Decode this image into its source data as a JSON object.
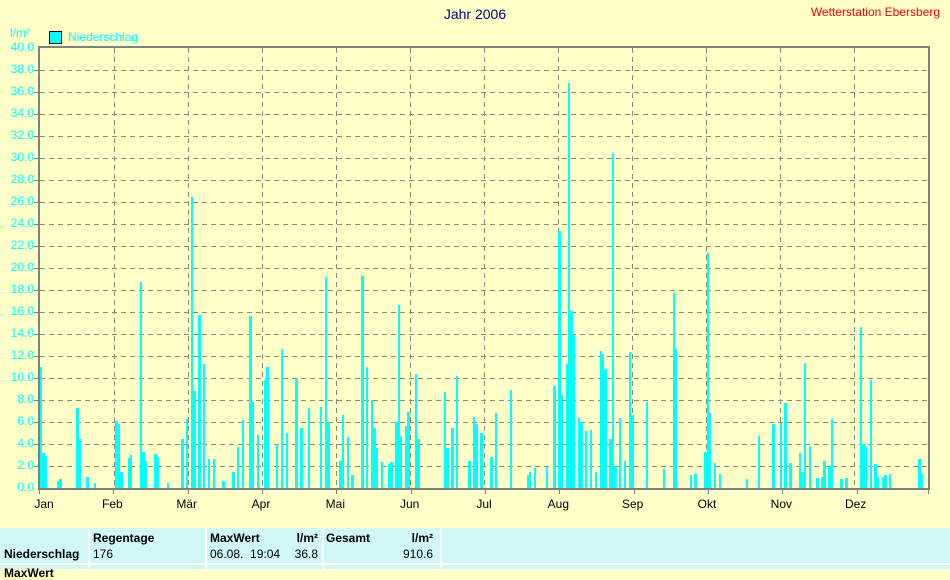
{
  "header": {
    "title": "Jahr 2006",
    "station": "Wetterstation Ebersberg"
  },
  "legend": {
    "label": "Niederschlag"
  },
  "y_axis": {
    "unit": "l/m²",
    "min": 0,
    "max": 40,
    "step": 2,
    "tick_format": "0.0"
  },
  "months": [
    "Jan",
    "Feb",
    "Mär",
    "Apr",
    "Mai",
    "Jun",
    "Jul",
    "Aug",
    "Sep",
    "Okt",
    "Nov",
    "Dez"
  ],
  "colors": {
    "background": "#FFFFC8",
    "bar": "#00FFFF",
    "axis_text": "#00FFFF",
    "title": "#000080",
    "station": "#FF0000",
    "grid": "#808080",
    "table_background": "#D0F7F3"
  },
  "chart_data": {
    "type": "bar",
    "title": "Jahr 2006",
    "ylabel": "l/m²",
    "series_name": "Niederschlag",
    "ylim": [
      0,
      40
    ],
    "grid": "dashed",
    "legend_position": "top-left",
    "x_unit": "day_of_year",
    "x_range": [
      1,
      365
    ],
    "points": [
      [
        1,
        11.0
      ],
      [
        2,
        3.2
      ],
      [
        3,
        2.9
      ],
      [
        8,
        0.6
      ],
      [
        9,
        0.8
      ],
      [
        16,
        7.3
      ],
      [
        17,
        4.5
      ],
      [
        20,
        1.0
      ],
      [
        23,
        0.5
      ],
      [
        32,
        6.1
      ],
      [
        33,
        5.8
      ],
      [
        34,
        1.5
      ],
      [
        37,
        2.7
      ],
      [
        38,
        3.0
      ],
      [
        42,
        18.7
      ],
      [
        43,
        3.3
      ],
      [
        44,
        2.5
      ],
      [
        48,
        3.1
      ],
      [
        49,
        2.8
      ],
      [
        53,
        0.5
      ],
      [
        59,
        4.5
      ],
      [
        61,
        6.3
      ],
      [
        63,
        26.5
      ],
      [
        64,
        8.8
      ],
      [
        66,
        15.7
      ],
      [
        68,
        11.3
      ],
      [
        70,
        2.6
      ],
      [
        72,
        2.6
      ],
      [
        76,
        0.6
      ],
      [
        80,
        1.5
      ],
      [
        82,
        3.7
      ],
      [
        84,
        6.2
      ],
      [
        87,
        15.6
      ],
      [
        88,
        7.8
      ],
      [
        90,
        4.8
      ],
      [
        93,
        9.8
      ],
      [
        94,
        11.0
      ],
      [
        98,
        4.0
      ],
      [
        100,
        12.6
      ],
      [
        102,
        5.0
      ],
      [
        106,
        10.0
      ],
      [
        108,
        5.5
      ],
      [
        111,
        7.3
      ],
      [
        116,
        7.4
      ],
      [
        118,
        19.2
      ],
      [
        119,
        6.0
      ],
      [
        124,
        2.5
      ],
      [
        125,
        6.6
      ],
      [
        127,
        4.6
      ],
      [
        129,
        1.2
      ],
      [
        133,
        19.3
      ],
      [
        135,
        11.0
      ],
      [
        137,
        8.0
      ],
      [
        138,
        5.5
      ],
      [
        139,
        3.6
      ],
      [
        141,
        2.4
      ],
      [
        144,
        2.2
      ],
      [
        145,
        2.4
      ],
      [
        147,
        6.0
      ],
      [
        148,
        16.6
      ],
      [
        149,
        4.7
      ],
      [
        151,
        5.6
      ],
      [
        152,
        6.9
      ],
      [
        155,
        10.4
      ],
      [
        156,
        4.5
      ],
      [
        167,
        8.7
      ],
      [
        168,
        3.6
      ],
      [
        170,
        5.5
      ],
      [
        172,
        10.2
      ],
      [
        177,
        2.5
      ],
      [
        179,
        6.5
      ],
      [
        180,
        5.8
      ],
      [
        182,
        5.0
      ],
      [
        186,
        2.8
      ],
      [
        188,
        6.8
      ],
      [
        194,
        8.9
      ],
      [
        201,
        1.2
      ],
      [
        202,
        1.5
      ],
      [
        204,
        1.8
      ],
      [
        209,
        1.9
      ],
      [
        212,
        9.3
      ],
      [
        214,
        23.4
      ],
      [
        215,
        8.5
      ],
      [
        217,
        11.3
      ],
      [
        218,
        36.8
      ],
      [
        219,
        16.1
      ],
      [
        220,
        13.9
      ],
      [
        222,
        6.4
      ],
      [
        223,
        6.0
      ],
      [
        225,
        5.2
      ],
      [
        227,
        5.3
      ],
      [
        229,
        1.5
      ],
      [
        231,
        12.5
      ],
      [
        232,
        12.2
      ],
      [
        233,
        10.8
      ],
      [
        235,
        4.5
      ],
      [
        236,
        30.5
      ],
      [
        237,
        2.0
      ],
      [
        239,
        6.4
      ],
      [
        241,
        2.5
      ],
      [
        243,
        12.4
      ],
      [
        244,
        6.6
      ],
      [
        250,
        7.8
      ],
      [
        257,
        1.7
      ],
      [
        261,
        17.7
      ],
      [
        262,
        12.6
      ],
      [
        268,
        1.2
      ],
      [
        270,
        1.3
      ],
      [
        274,
        3.3
      ],
      [
        275,
        21.4
      ],
      [
        276,
        6.8
      ],
      [
        278,
        2.3
      ],
      [
        280,
        1.3
      ],
      [
        291,
        0.8
      ],
      [
        296,
        4.7
      ],
      [
        302,
        5.8
      ],
      [
        305,
        5.9
      ],
      [
        307,
        7.7
      ],
      [
        309,
        2.3
      ],
      [
        313,
        3.2
      ],
      [
        314,
        1.5
      ],
      [
        315,
        11.4
      ],
      [
        317,
        3.8
      ],
      [
        320,
        0.9
      ],
      [
        322,
        1.0
      ],
      [
        323,
        2.5
      ],
      [
        325,
        2.0
      ],
      [
        326,
        6.3
      ],
      [
        330,
        0.8
      ],
      [
        332,
        0.9
      ],
      [
        338,
        14.6
      ],
      [
        339,
        4.0
      ],
      [
        340,
        3.7
      ],
      [
        342,
        9.8
      ],
      [
        344,
        2.2
      ],
      [
        345,
        1.0
      ],
      [
        347,
        1.0
      ],
      [
        348,
        1.2
      ],
      [
        350,
        1.3
      ],
      [
        362,
        2.6
      ],
      [
        363,
        1.3
      ]
    ]
  },
  "stats_table": {
    "row_label": "Niederschlag",
    "col_regentage": {
      "header": "Regentage",
      "value": "176"
    },
    "col_maxwert": {
      "header": "MaxWert",
      "header_unit": "l/m²",
      "value": "06.08.  19:04",
      "value_unit": "36.8"
    },
    "col_gesamt": {
      "header": "Gesamt",
      "header_unit": "l/m²",
      "value": "910.6"
    },
    "next_row_label": "MaxWert"
  }
}
